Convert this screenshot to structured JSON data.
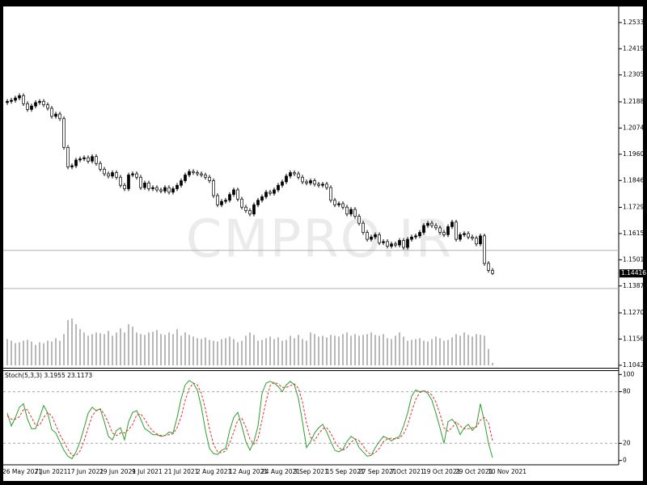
{
  "chart_data": [
    {
      "type": "candlestick",
      "watermark": "CMPRO.IR",
      "bull_color": "#000000",
      "bear_color": "#ffffff",
      "volume_color": "#707070",
      "hline_color": "#b0b0b0",
      "categories": [
        "26 May 2021",
        null,
        null,
        null,
        null,
        null,
        null,
        null,
        "7 Jun 2021",
        null,
        null,
        null,
        null,
        null,
        null,
        null,
        "17 Jun 2021",
        null,
        null,
        null,
        null,
        null,
        null,
        null,
        "29 Jun 2021",
        null,
        null,
        null,
        null,
        null,
        null,
        null,
        "9 Jul 2021",
        null,
        null,
        null,
        null,
        null,
        null,
        null,
        "21 Jul 2021",
        null,
        null,
        null,
        null,
        null,
        null,
        null,
        "2 Aug 2021",
        null,
        null,
        null,
        null,
        null,
        null,
        null,
        "12 Aug 2021",
        null,
        null,
        null,
        null,
        null,
        null,
        null,
        "24 Aug 2021",
        null,
        null,
        null,
        null,
        null,
        null,
        null,
        "3 Sep 2021",
        null,
        null,
        null,
        null,
        null,
        null,
        null,
        "15 Sep 2021",
        null,
        null,
        null,
        null,
        null,
        null,
        null,
        "27 Sep 2021",
        null,
        null,
        null,
        null,
        null,
        null,
        null,
        "7 Oct 2021",
        null,
        null,
        null,
        null,
        null,
        null,
        null,
        "19 Oct 2021",
        null,
        null,
        null,
        null,
        null,
        null,
        null,
        "29 Oct 2021",
        null,
        null,
        null,
        null,
        null,
        null,
        null,
        "10 Nov 2021"
      ],
      "open": [
        1.2185,
        1.219,
        1.2195,
        1.2205,
        1.2215,
        1.218,
        1.2155,
        1.217,
        1.2185,
        1.219,
        1.2175,
        1.216,
        1.2125,
        1.2135,
        1.2115,
        1.199,
        1.1905,
        1.191,
        1.1935,
        1.194,
        1.1945,
        1.193,
        1.195,
        1.192,
        1.1895,
        1.1875,
        1.1865,
        1.188,
        1.186,
        1.1825,
        1.181,
        1.187,
        1.1875,
        1.186,
        1.1815,
        1.1835,
        1.181,
        1.1815,
        1.1805,
        1.18,
        1.1815,
        1.1795,
        1.181,
        1.1825,
        1.1845,
        1.187,
        1.1885,
        1.188,
        1.1875,
        1.187,
        1.186,
        1.1845,
        1.178,
        1.174,
        1.1755,
        1.176,
        1.1785,
        1.1805,
        1.1765,
        1.173,
        1.1715,
        1.17,
        1.174,
        1.176,
        1.1775,
        1.1795,
        1.179,
        1.1805,
        1.1825,
        1.184,
        1.1865,
        1.188,
        1.1875,
        1.186,
        1.184,
        1.1835,
        1.1845,
        1.183,
        1.1825,
        1.183,
        1.1815,
        1.176,
        1.174,
        1.1745,
        1.173,
        1.17,
        1.172,
        1.169,
        1.166,
        1.162,
        1.159,
        1.16,
        1.161,
        1.1575,
        1.158,
        1.156,
        1.157,
        1.1565,
        1.1585,
        1.1555,
        1.159,
        1.16,
        1.1605,
        1.162,
        1.165,
        1.166,
        1.165,
        1.164,
        1.162,
        1.161,
        1.1645,
        1.1665,
        1.159,
        1.161,
        1.1615,
        1.16,
        1.1595,
        1.157,
        1.1605,
        1.1485,
        1.1455
      ],
      "high": [
        1.22,
        1.2205,
        1.2215,
        1.2225,
        1.2225,
        1.219,
        1.218,
        1.2195,
        1.22,
        1.22,
        1.2185,
        1.217,
        1.2145,
        1.2145,
        1.2125,
        1.2,
        1.192,
        1.1945,
        1.195,
        1.1955,
        1.1955,
        1.196,
        1.196,
        1.193,
        1.1905,
        1.1885,
        1.189,
        1.189,
        1.187,
        1.1835,
        1.188,
        1.1885,
        1.1885,
        1.187,
        1.1845,
        1.1845,
        1.1825,
        1.1825,
        1.1815,
        1.1825,
        1.1825,
        1.182,
        1.1835,
        1.1855,
        1.188,
        1.1895,
        1.1895,
        1.189,
        1.1885,
        1.188,
        1.187,
        1.1855,
        1.179,
        1.1765,
        1.177,
        1.1795,
        1.1815,
        1.1815,
        1.1775,
        1.174,
        1.1725,
        1.175,
        1.177,
        1.1785,
        1.1805,
        1.1805,
        1.1815,
        1.1835,
        1.185,
        1.1875,
        1.189,
        1.189,
        1.1885,
        1.187,
        1.185,
        1.1855,
        1.1855,
        1.184,
        1.184,
        1.184,
        1.1825,
        1.177,
        1.1755,
        1.1755,
        1.174,
        1.173,
        1.173,
        1.17,
        1.167,
        1.163,
        1.161,
        1.162,
        1.162,
        1.159,
        1.159,
        1.158,
        1.158,
        1.1595,
        1.1595,
        1.16,
        1.161,
        1.1615,
        1.163,
        1.166,
        1.167,
        1.167,
        1.166,
        1.165,
        1.163,
        1.1655,
        1.1675,
        1.1675,
        1.162,
        1.1625,
        1.1625,
        1.161,
        1.1605,
        1.1615,
        1.1615,
        1.1495,
        1.1465
      ],
      "low": [
        1.2175,
        1.218,
        1.2185,
        1.2195,
        1.217,
        1.2145,
        1.2145,
        1.216,
        1.2175,
        1.2165,
        1.215,
        1.2115,
        1.2115,
        1.2105,
        1.198,
        1.1895,
        1.1895,
        1.19,
        1.1925,
        1.193,
        1.192,
        1.192,
        1.191,
        1.1885,
        1.1865,
        1.1855,
        1.1855,
        1.185,
        1.1815,
        1.18,
        1.18,
        1.186,
        1.185,
        1.1805,
        1.1805,
        1.18,
        1.18,
        1.1795,
        1.179,
        1.179,
        1.1785,
        1.1785,
        1.18,
        1.1815,
        1.1835,
        1.186,
        1.187,
        1.1865,
        1.186,
        1.185,
        1.1835,
        1.177,
        1.173,
        1.173,
        1.1745,
        1.175,
        1.1775,
        1.1755,
        1.172,
        1.1705,
        1.169,
        1.169,
        1.173,
        1.175,
        1.1765,
        1.178,
        1.178,
        1.1795,
        1.1815,
        1.183,
        1.1855,
        1.1865,
        1.185,
        1.183,
        1.1825,
        1.1825,
        1.182,
        1.1815,
        1.1815,
        1.1805,
        1.175,
        1.173,
        1.173,
        1.172,
        1.169,
        1.169,
        1.168,
        1.165,
        1.161,
        1.158,
        1.158,
        1.159,
        1.1565,
        1.1565,
        1.155,
        1.155,
        1.1555,
        1.1555,
        1.1545,
        1.1545,
        1.158,
        1.159,
        1.1595,
        1.161,
        1.164,
        1.164,
        1.163,
        1.161,
        1.16,
        1.16,
        1.1635,
        1.158,
        1.158,
        1.16,
        1.159,
        1.1585,
        1.156,
        1.156,
        1.1475,
        1.1445,
        1.1435
      ],
      "close": [
        1.219,
        1.2195,
        1.2205,
        1.2215,
        1.218,
        1.2155,
        1.217,
        1.2185,
        1.219,
        1.2175,
        1.216,
        1.2125,
        1.2135,
        1.2115,
        1.199,
        1.1905,
        1.191,
        1.1935,
        1.194,
        1.1945,
        1.193,
        1.195,
        1.192,
        1.1895,
        1.1875,
        1.1865,
        1.188,
        1.186,
        1.1825,
        1.181,
        1.187,
        1.1875,
        1.186,
        1.1815,
        1.1835,
        1.181,
        1.1815,
        1.1805,
        1.18,
        1.1815,
        1.1795,
        1.181,
        1.1825,
        1.1845,
        1.187,
        1.1885,
        1.188,
        1.1875,
        1.187,
        1.186,
        1.1845,
        1.178,
        1.174,
        1.1755,
        1.176,
        1.1785,
        1.1805,
        1.1765,
        1.173,
        1.1715,
        1.17,
        1.174,
        1.176,
        1.1775,
        1.1795,
        1.179,
        1.1805,
        1.1825,
        1.184,
        1.1865,
        1.188,
        1.1875,
        1.186,
        1.184,
        1.1835,
        1.1845,
        1.183,
        1.1825,
        1.183,
        1.1815,
        1.176,
        1.174,
        1.1745,
        1.173,
        1.17,
        1.172,
        1.169,
        1.166,
        1.162,
        1.159,
        1.16,
        1.161,
        1.1575,
        1.158,
        1.156,
        1.157,
        1.1565,
        1.1585,
        1.1555,
        1.159,
        1.16,
        1.1605,
        1.162,
        1.165,
        1.166,
        1.165,
        1.164,
        1.162,
        1.161,
        1.1645,
        1.1665,
        1.159,
        1.161,
        1.1615,
        1.16,
        1.1595,
        1.157,
        1.1605,
        1.1485,
        1.1455,
        1.14416
      ],
      "volume": [
        32,
        30,
        27,
        28,
        30,
        31,
        29,
        25,
        28,
        27,
        30,
        29,
        33,
        30,
        38,
        55,
        57,
        50,
        44,
        40,
        36,
        38,
        40,
        39,
        38,
        42,
        36,
        40,
        45,
        40,
        50,
        47,
        40,
        38,
        37,
        40,
        41,
        43,
        38,
        37,
        40,
        38,
        44,
        36,
        40,
        37,
        35,
        33,
        32,
        34,
        31,
        30,
        29,
        32,
        33,
        35,
        32,
        28,
        30,
        36,
        40,
        37,
        30,
        31,
        33,
        35,
        32,
        34,
        30,
        31,
        36,
        33,
        37,
        32,
        30,
        40,
        38,
        35,
        36,
        34,
        37,
        36,
        35,
        38,
        40,
        36,
        38,
        36,
        37,
        38,
        40,
        37,
        36,
        38,
        33,
        32,
        36,
        40,
        35,
        30,
        31,
        32,
        33,
        30,
        29,
        32,
        35,
        33,
        30,
        31,
        34,
        38,
        36,
        40,
        37,
        35,
        38,
        37,
        36,
        20,
        3
      ],
      "ylim": [
        1.1031,
        1.2603
      ],
      "yticks": [
        {
          "value": 1.2533,
          "label": "1.25330"
        },
        {
          "value": 1.2419,
          "label": "1.24190"
        },
        {
          "value": 1.2305,
          "label": "1.23050"
        },
        {
          "value": 1.2188,
          "label": "1.21880"
        },
        {
          "value": 1.2074,
          "label": "1.20740"
        },
        {
          "value": 1.196,
          "label": "1.19600"
        },
        {
          "value": 1.1846,
          "label": "1.18460"
        },
        {
          "value": 1.1729,
          "label": "1.17290"
        },
        {
          "value": 1.1615,
          "label": "1.16150"
        },
        {
          "value": 1.1501,
          "label": "1.15010"
        },
        {
          "value": 1.1387,
          "label": "1.13870"
        },
        {
          "value": 1.127,
          "label": "1.12700"
        },
        {
          "value": 1.1156,
          "label": "1.11560"
        },
        {
          "value": 1.1042,
          "label": "1.10420"
        }
      ],
      "hlines": [
        1.1542,
        1.1376
      ]
    },
    {
      "type": "line",
      "title": "Stoch(5,3,3) 3.1955 23.1173",
      "ylim": [
        -5,
        105
      ],
      "yticks": [
        0,
        20,
        80,
        100
      ],
      "levels": [
        20,
        80
      ],
      "series": [
        {
          "color": "#2e9e2e",
          "dash": false,
          "values": [
            55,
            40,
            50,
            62,
            66,
            48,
            37,
            37,
            50,
            64,
            55,
            36,
            32,
            22,
            12,
            5,
            2,
            10,
            22,
            38,
            55,
            62,
            58,
            60,
            45,
            28,
            24,
            35,
            38,
            24,
            45,
            56,
            58,
            48,
            37,
            34,
            30,
            30,
            28,
            29,
            33,
            32,
            50,
            72,
            88,
            93,
            90,
            82,
            62,
            35,
            14,
            8,
            7,
            12,
            14,
            35,
            50,
            56,
            40,
            22,
            12,
            22,
            40,
            78,
            90,
            92,
            90,
            86,
            80,
            88,
            92,
            88,
            72,
            45,
            15,
            22,
            32,
            38,
            42,
            33,
            22,
            12,
            10,
            13,
            22,
            28,
            25,
            15,
            10,
            5,
            6,
            15,
            22,
            28,
            26,
            23,
            26,
            28,
            40,
            55,
            75,
            82,
            80,
            81,
            78,
            70,
            55,
            38,
            20,
            45,
            48,
            42,
            30,
            38,
            42,
            35,
            40,
            66,
            45,
            20,
            3.1955
          ]
        },
        {
          "color": "#e03030",
          "dash": true,
          "values": [
            52,
            48,
            48,
            51,
            59,
            59,
            50,
            41,
            41,
            50,
            56,
            52,
            41,
            30,
            22,
            13,
            6,
            6,
            11,
            23,
            38,
            52,
            58,
            60,
            54,
            44,
            32,
            29,
            32,
            32,
            36,
            42,
            53,
            54,
            48,
            40,
            34,
            31,
            29,
            29,
            30,
            31,
            38,
            51,
            70,
            84,
            90,
            88,
            78,
            60,
            37,
            19,
            10,
            9,
            11,
            20,
            33,
            47,
            49,
            39,
            25,
            19,
            25,
            47,
            69,
            87,
            91,
            89,
            85,
            85,
            87,
            89,
            84,
            68,
            44,
            27,
            23,
            31,
            37,
            38,
            32,
            22,
            15,
            12,
            15,
            21,
            25,
            23,
            17,
            10,
            7,
            9,
            14,
            22,
            25,
            26,
            25,
            26,
            31,
            41,
            57,
            71,
            79,
            81,
            80,
            76,
            68,
            54,
            38,
            34,
            38,
            45,
            40,
            37,
            37,
            38,
            39,
            47,
            50,
            44,
            23.1173
          ]
        }
      ]
    }
  ]
}
